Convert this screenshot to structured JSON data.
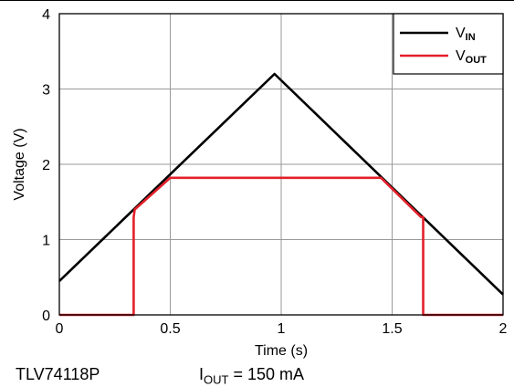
{
  "chart_data": {
    "type": "line",
    "xlabel": "Time (s)",
    "ylabel": "Voltage (V)",
    "xlim": [
      0,
      2
    ],
    "ylim": [
      0,
      4
    ],
    "grid": true,
    "legend_position": "top-right",
    "x_ticks": [
      "0",
      "0.5",
      "1",
      "1.5",
      "2"
    ],
    "y_ticks": [
      "0",
      "1",
      "2",
      "3",
      "4"
    ],
    "series": [
      {
        "name": "VIN",
        "label_main": "V",
        "label_sub": "IN",
        "color": "#000000",
        "points": [
          [
            0,
            0.45
          ],
          [
            0.97,
            3.2
          ],
          [
            2,
            0.27
          ]
        ]
      },
      {
        "name": "VOUT",
        "label_main": "V",
        "label_sub": "OUT",
        "color": "#e3202a",
        "points": [
          [
            0,
            0
          ],
          [
            0.335,
            0
          ],
          [
            0.335,
            1.3
          ],
          [
            0.34,
            1.4
          ],
          [
            0.5,
            1.82
          ],
          [
            1.45,
            1.82
          ],
          [
            1.63,
            1.3
          ],
          [
            1.64,
            1.3
          ],
          [
            1.64,
            0
          ],
          [
            2,
            0
          ]
        ]
      }
    ]
  },
  "footer": {
    "device": "TLV74118P",
    "iout_prefix": "I",
    "iout_sub": "OUT",
    "iout_value": " = 150 mA"
  }
}
